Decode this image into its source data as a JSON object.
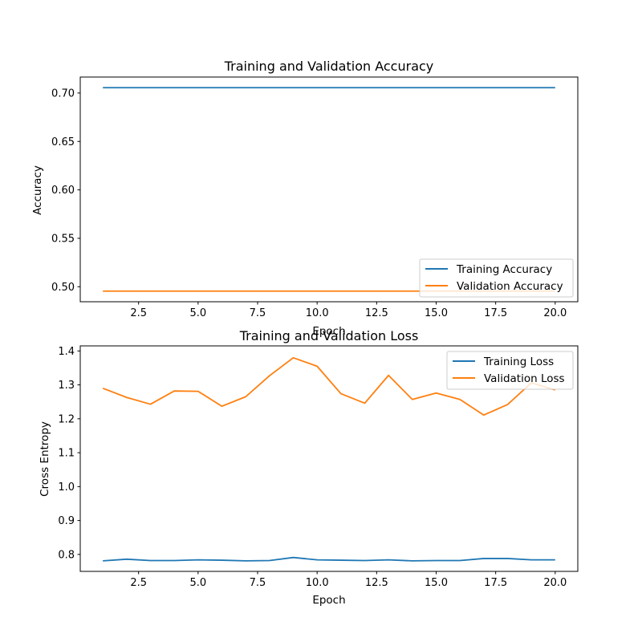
{
  "chart_data": [
    {
      "type": "line",
      "title": "Training and Validation Accuracy",
      "xlabel": "Epoch",
      "ylabel": "Accuracy",
      "xlim": [
        0.05,
        20.95
      ],
      "ylim": [
        0.4845,
        0.7165
      ],
      "xticks": [
        "2.5",
        "5.0",
        "7.5",
        "10.0",
        "12.5",
        "15.0",
        "17.5",
        "20.0"
      ],
      "yticks": [
        "0.50",
        "0.55",
        "0.60",
        "0.65",
        "0.70"
      ],
      "x": [
        1,
        2,
        3,
        4,
        5,
        6,
        7,
        8,
        9,
        10,
        11,
        12,
        13,
        14,
        15,
        16,
        17,
        18,
        19,
        20
      ],
      "series": [
        {
          "name": "Training Accuracy",
          "color": "#1f77b4",
          "values": [
            0.7055,
            0.7055,
            0.7055,
            0.7055,
            0.7055,
            0.7055,
            0.7055,
            0.7055,
            0.7055,
            0.7055,
            0.7055,
            0.7055,
            0.7055,
            0.7055,
            0.7055,
            0.7055,
            0.7055,
            0.7055,
            0.7055,
            0.7055
          ]
        },
        {
          "name": "Validation Accuracy",
          "color": "#ff7f0e",
          "values": [
            0.4955,
            0.4955,
            0.4955,
            0.4955,
            0.4955,
            0.4955,
            0.4955,
            0.4955,
            0.4955,
            0.4955,
            0.4955,
            0.4955,
            0.4955,
            0.4955,
            0.4955,
            0.4955,
            0.4955,
            0.4955,
            0.4955,
            0.4955
          ]
        }
      ],
      "legend": "lower-right",
      "grid": false
    },
    {
      "type": "line",
      "title": "Training and Validation Loss",
      "xlabel": "Epoch",
      "ylabel": "Cross Entropy",
      "xlim": [
        0.05,
        20.95
      ],
      "ylim": [
        0.75,
        1.415
      ],
      "xticks": [
        "2.5",
        "5.0",
        "7.5",
        "10.0",
        "12.5",
        "15.0",
        "17.5",
        "20.0"
      ],
      "yticks": [
        "0.8",
        "0.9",
        "1.0",
        "1.1",
        "1.2",
        "1.3",
        "1.4"
      ],
      "x": [
        1,
        2,
        3,
        4,
        5,
        6,
        7,
        8,
        9,
        10,
        11,
        12,
        13,
        14,
        15,
        16,
        17,
        18,
        19,
        20
      ],
      "series": [
        {
          "name": "Training Loss",
          "color": "#1f77b4",
          "values": [
            0.781,
            0.786,
            0.782,
            0.782,
            0.784,
            0.783,
            0.781,
            0.782,
            0.791,
            0.784,
            0.783,
            0.782,
            0.784,
            0.781,
            0.782,
            0.782,
            0.788,
            0.788,
            0.784,
            0.784
          ]
        },
        {
          "name": "Validation Loss",
          "color": "#ff7f0e",
          "values": [
            1.29,
            1.263,
            1.243,
            1.282,
            1.281,
            1.237,
            1.265,
            1.327,
            1.38,
            1.355,
            1.274,
            1.246,
            1.328,
            1.257,
            1.276,
            1.257,
            1.211,
            1.242,
            1.306,
            1.285
          ]
        }
      ],
      "legend": "upper-right",
      "grid": false
    }
  ]
}
